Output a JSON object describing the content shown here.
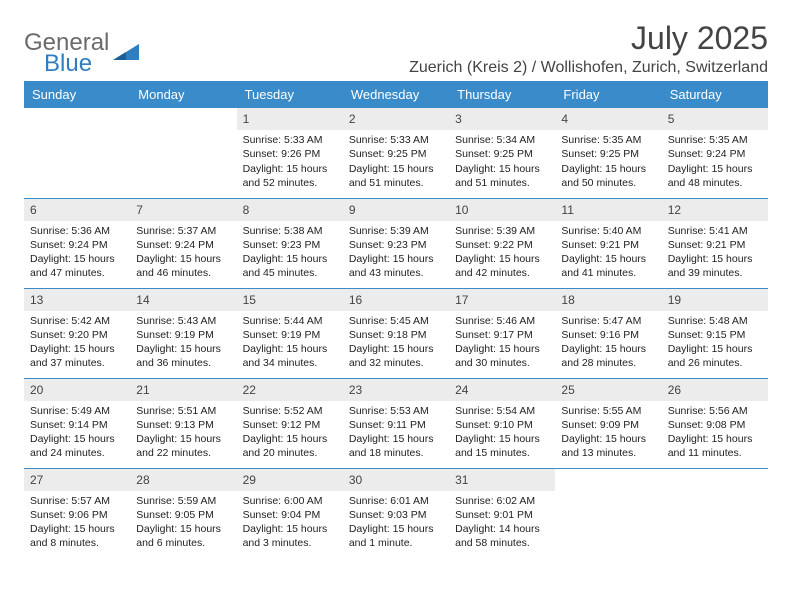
{
  "logo": {
    "line1": "General",
    "line2": "Blue"
  },
  "title": "July 2025",
  "location": "Zuerich (Kreis 2) / Wollishofen, Zurich, Switzerland",
  "colors": {
    "header_bg": "#3a8bc9",
    "header_text": "#ffffff",
    "daynum_bg": "#ececec",
    "rule": "#3a8bc9",
    "logo_gray": "#6b6b6b",
    "logo_blue": "#2f7ec2"
  },
  "weekdays": [
    "Sunday",
    "Monday",
    "Tuesday",
    "Wednesday",
    "Thursday",
    "Friday",
    "Saturday"
  ],
  "weeks": [
    [
      null,
      null,
      {
        "n": "1",
        "sr": "5:33 AM",
        "ss": "9:26 PM",
        "dl": "15 hours and 52 minutes."
      },
      {
        "n": "2",
        "sr": "5:33 AM",
        "ss": "9:25 PM",
        "dl": "15 hours and 51 minutes."
      },
      {
        "n": "3",
        "sr": "5:34 AM",
        "ss": "9:25 PM",
        "dl": "15 hours and 51 minutes."
      },
      {
        "n": "4",
        "sr": "5:35 AM",
        "ss": "9:25 PM",
        "dl": "15 hours and 50 minutes."
      },
      {
        "n": "5",
        "sr": "5:35 AM",
        "ss": "9:24 PM",
        "dl": "15 hours and 48 minutes."
      }
    ],
    [
      {
        "n": "6",
        "sr": "5:36 AM",
        "ss": "9:24 PM",
        "dl": "15 hours and 47 minutes."
      },
      {
        "n": "7",
        "sr": "5:37 AM",
        "ss": "9:24 PM",
        "dl": "15 hours and 46 minutes."
      },
      {
        "n": "8",
        "sr": "5:38 AM",
        "ss": "9:23 PM",
        "dl": "15 hours and 45 minutes."
      },
      {
        "n": "9",
        "sr": "5:39 AM",
        "ss": "9:23 PM",
        "dl": "15 hours and 43 minutes."
      },
      {
        "n": "10",
        "sr": "5:39 AM",
        "ss": "9:22 PM",
        "dl": "15 hours and 42 minutes."
      },
      {
        "n": "11",
        "sr": "5:40 AM",
        "ss": "9:21 PM",
        "dl": "15 hours and 41 minutes."
      },
      {
        "n": "12",
        "sr": "5:41 AM",
        "ss": "9:21 PM",
        "dl": "15 hours and 39 minutes."
      }
    ],
    [
      {
        "n": "13",
        "sr": "5:42 AM",
        "ss": "9:20 PM",
        "dl": "15 hours and 37 minutes."
      },
      {
        "n": "14",
        "sr": "5:43 AM",
        "ss": "9:19 PM",
        "dl": "15 hours and 36 minutes."
      },
      {
        "n": "15",
        "sr": "5:44 AM",
        "ss": "9:19 PM",
        "dl": "15 hours and 34 minutes."
      },
      {
        "n": "16",
        "sr": "5:45 AM",
        "ss": "9:18 PM",
        "dl": "15 hours and 32 minutes."
      },
      {
        "n": "17",
        "sr": "5:46 AM",
        "ss": "9:17 PM",
        "dl": "15 hours and 30 minutes."
      },
      {
        "n": "18",
        "sr": "5:47 AM",
        "ss": "9:16 PM",
        "dl": "15 hours and 28 minutes."
      },
      {
        "n": "19",
        "sr": "5:48 AM",
        "ss": "9:15 PM",
        "dl": "15 hours and 26 minutes."
      }
    ],
    [
      {
        "n": "20",
        "sr": "5:49 AM",
        "ss": "9:14 PM",
        "dl": "15 hours and 24 minutes."
      },
      {
        "n": "21",
        "sr": "5:51 AM",
        "ss": "9:13 PM",
        "dl": "15 hours and 22 minutes."
      },
      {
        "n": "22",
        "sr": "5:52 AM",
        "ss": "9:12 PM",
        "dl": "15 hours and 20 minutes."
      },
      {
        "n": "23",
        "sr": "5:53 AM",
        "ss": "9:11 PM",
        "dl": "15 hours and 18 minutes."
      },
      {
        "n": "24",
        "sr": "5:54 AM",
        "ss": "9:10 PM",
        "dl": "15 hours and 15 minutes."
      },
      {
        "n": "25",
        "sr": "5:55 AM",
        "ss": "9:09 PM",
        "dl": "15 hours and 13 minutes."
      },
      {
        "n": "26",
        "sr": "5:56 AM",
        "ss": "9:08 PM",
        "dl": "15 hours and 11 minutes."
      }
    ],
    [
      {
        "n": "27",
        "sr": "5:57 AM",
        "ss": "9:06 PM",
        "dl": "15 hours and 8 minutes."
      },
      {
        "n": "28",
        "sr": "5:59 AM",
        "ss": "9:05 PM",
        "dl": "15 hours and 6 minutes."
      },
      {
        "n": "29",
        "sr": "6:00 AM",
        "ss": "9:04 PM",
        "dl": "15 hours and 3 minutes."
      },
      {
        "n": "30",
        "sr": "6:01 AM",
        "ss": "9:03 PM",
        "dl": "15 hours and 1 minute."
      },
      {
        "n": "31",
        "sr": "6:02 AM",
        "ss": "9:01 PM",
        "dl": "14 hours and 58 minutes."
      },
      null,
      null
    ]
  ],
  "labels": {
    "sunrise": "Sunrise:",
    "sunset": "Sunset:",
    "daylight": "Daylight:"
  }
}
